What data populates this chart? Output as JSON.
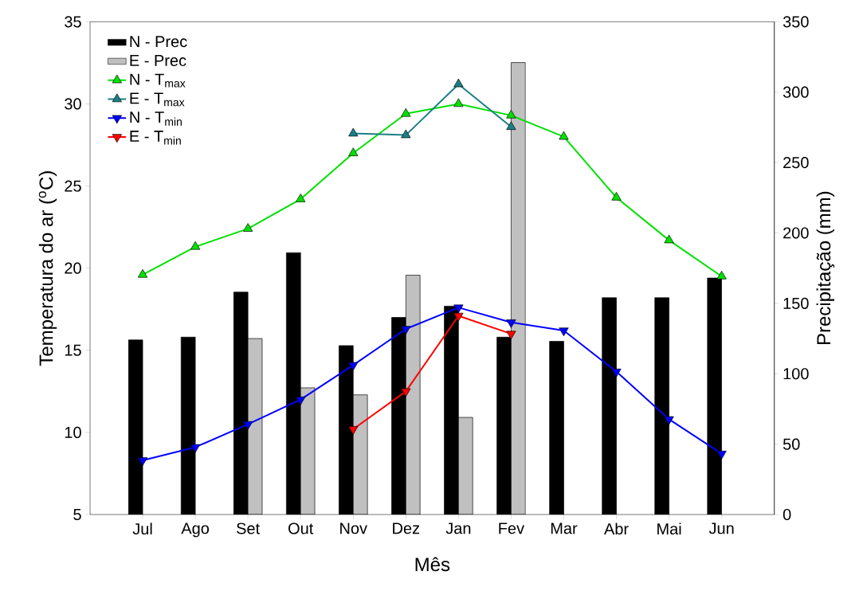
{
  "chart_data": {
    "type": "bar",
    "xlabel": "Mês",
    "ylabel": "Temperatura do ar ($^{o}$C)",
    "y2label": "Precipitação (mm)",
    "categories": [
      "Jul",
      "Ago",
      "Set",
      "Out",
      "Nov",
      "Dez",
      "Jan",
      "Fev",
      "Mar",
      "Abr",
      "Mai",
      "Jun"
    ],
    "ylim": [
      5,
      35
    ],
    "yticks": [
      5,
      10,
      15,
      20,
      25,
      30,
      35
    ],
    "y2lim": [
      0,
      350
    ],
    "y2ticks": [
      0,
      50,
      100,
      150,
      200,
      250,
      300,
      350
    ],
    "legend": "top left",
    "series": [
      {
        "name": "N - Prec",
        "axis": "y2",
        "color": "#000000",
        "values": [
          124,
          126,
          158,
          186,
          120,
          140,
          148,
          126,
          123,
          154,
          154,
          168
        ]
      },
      {
        "name": "E - Prec",
        "axis": "y2",
        "color": "#c0c0c0",
        "values": [
          null,
          null,
          125,
          90,
          85,
          170,
          69,
          321,
          null,
          null,
          null,
          null
        ]
      },
      {
        "name": "N - T$_{max}$",
        "type": "line",
        "marker": "triangle",
        "color": "#00e000",
        "values": [
          19.6,
          21.3,
          22.4,
          24.2,
          27.0,
          29.4,
          30.0,
          29.3,
          28.0,
          24.3,
          21.7,
          19.5
        ]
      },
      {
        "name": "E - T$_{max}$",
        "type": "line",
        "marker": "triangle",
        "color": "#1a7f85",
        "values": [
          null,
          null,
          null,
          null,
          28.2,
          28.1,
          31.2,
          28.6,
          null,
          null,
          null,
          null
        ]
      },
      {
        "name": "N - T$_{min}$",
        "type": "line",
        "marker": "triangle-down",
        "color": "#0000ff",
        "values": [
          8.3,
          9.1,
          10.5,
          12.0,
          14.1,
          16.3,
          17.6,
          16.7,
          16.2,
          13.7,
          10.8,
          8.7
        ]
      },
      {
        "name": "E - T$_{min}$",
        "type": "line",
        "marker": "triangle-down",
        "color": "#ff0000",
        "values": [
          null,
          null,
          null,
          null,
          10.2,
          12.5,
          17.1,
          16.0,
          null,
          null,
          null,
          null
        ]
      }
    ]
  }
}
